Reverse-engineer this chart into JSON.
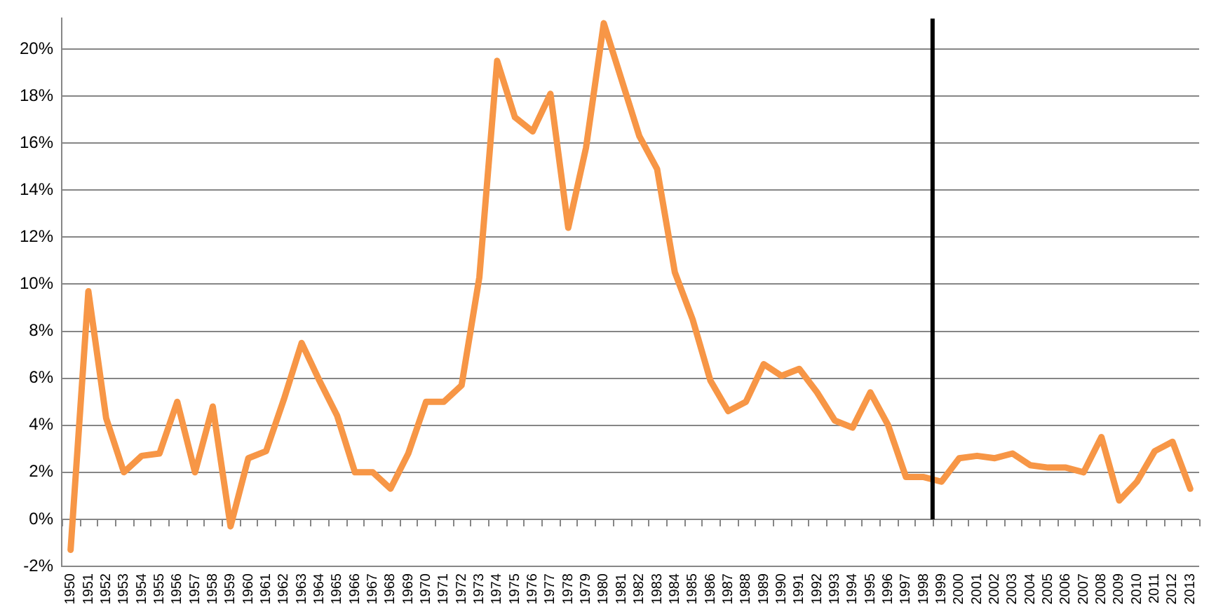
{
  "chart_data": {
    "type": "line",
    "x": [
      1950,
      1951,
      1952,
      1953,
      1954,
      1955,
      1956,
      1957,
      1958,
      1959,
      1960,
      1961,
      1962,
      1963,
      1964,
      1965,
      1966,
      1967,
      1968,
      1969,
      1970,
      1971,
      1972,
      1973,
      1974,
      1975,
      1976,
      1977,
      1978,
      1979,
      1980,
      1981,
      1982,
      1983,
      1984,
      1985,
      1986,
      1987,
      1988,
      1989,
      1990,
      1991,
      1992,
      1993,
      1994,
      1995,
      1996,
      1997,
      1998,
      1999,
      2000,
      2001,
      2002,
      2003,
      2004,
      2005,
      2006,
      2007,
      2008,
      2009,
      2010,
      2011,
      2012,
      2013
    ],
    "series": [
      {
        "color": "#f79646",
        "values": [
          -1.3,
          9.7,
          4.3,
          2.0,
          2.7,
          2.8,
          5.0,
          2.0,
          4.8,
          -0.3,
          2.6,
          2.9,
          5.1,
          7.5,
          5.9,
          4.4,
          2.0,
          2.0,
          1.3,
          2.8,
          5.0,
          5.0,
          5.7,
          10.3,
          19.5,
          17.1,
          16.5,
          18.1,
          12.4,
          15.8,
          21.1,
          18.7,
          16.3,
          14.9,
          10.5,
          8.5,
          5.9,
          4.6,
          5.0,
          6.6,
          6.1,
          6.4,
          5.4,
          4.2,
          3.9,
          5.4,
          4.0,
          1.8,
          1.8,
          1.6,
          2.6,
          2.7,
          2.6,
          2.8,
          2.3,
          2.2,
          2.2,
          2.0,
          3.5,
          0.8,
          1.6,
          2.9,
          3.3,
          1.3
        ]
      }
    ],
    "xlim": [
      1949.5,
      2013.5
    ],
    "xticks": [
      1950,
      1951,
      1952,
      1953,
      1954,
      1955,
      1956,
      1957,
      1958,
      1959,
      1960,
      1961,
      1962,
      1963,
      1964,
      1965,
      1966,
      1967,
      1968,
      1969,
      1970,
      1971,
      1972,
      1973,
      1974,
      1975,
      1976,
      1977,
      1978,
      1979,
      1980,
      1981,
      1982,
      1983,
      1984,
      1985,
      1986,
      1987,
      1988,
      1989,
      1990,
      1991,
      1992,
      1993,
      1994,
      1995,
      1996,
      1997,
      1998,
      1999,
      2000,
      2001,
      2002,
      2003,
      2004,
      2005,
      2006,
      2007,
      2008,
      2009,
      2010,
      2011,
      2012,
      2013
    ],
    "ylim": [
      -2,
      21.3
    ],
    "yticks": [
      {
        "value": -2,
        "label": "-2%"
      },
      {
        "value": 0,
        "label": "0%"
      },
      {
        "value": 2,
        "label": "2%"
      },
      {
        "value": 4,
        "label": "4%"
      },
      {
        "value": 6,
        "label": "6%"
      },
      {
        "value": 8,
        "label": "8%"
      },
      {
        "value": 10,
        "label": "10%"
      },
      {
        "value": 12,
        "label": "12%"
      },
      {
        "value": 14,
        "label": "14%"
      },
      {
        "value": 16,
        "label": "16%"
      },
      {
        "value": 18,
        "label": "18%"
      },
      {
        "value": 20,
        "label": "20%"
      }
    ],
    "grid": "y",
    "marker": "none",
    "ref_lines": [
      {
        "axis": "x",
        "value": 1998.5,
        "color": "#000000"
      }
    ]
  }
}
